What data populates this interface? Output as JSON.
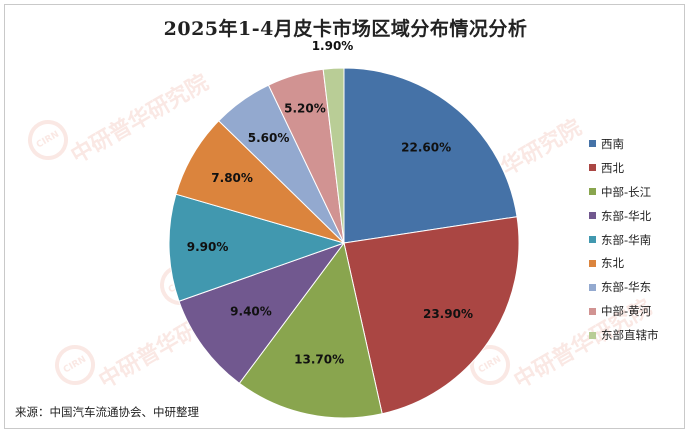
{
  "chart_data": {
    "type": "pie",
    "title": "2025年1-4月皮卡市场区域分布情况分析",
    "categories": [
      "西南",
      "西北",
      "中部-长江",
      "东部-华北",
      "东部-华南",
      "东北",
      "东部-华东",
      "中部-黄河",
      "东部直辖市"
    ],
    "values": [
      22.6,
      23.9,
      13.7,
      9.4,
      9.9,
      7.8,
      5.6,
      5.2,
      1.9
    ],
    "labels": [
      "22.60%",
      "23.90%",
      "13.70%",
      "9.40%",
      "9.90%",
      "7.80%",
      "5.60%",
      "5.20%",
      "1.90%"
    ],
    "colors": [
      "#4572a7",
      "#aa4643",
      "#89a54e",
      "#71588f",
      "#4198af",
      "#db843d",
      "#93a9cf",
      "#d19392",
      "#b9cd96"
    ],
    "legend_position": "right",
    "start": "12 o'clock, clockwise"
  },
  "source": "来源：中国汽车流通协会、中研整理",
  "watermark": {
    "badge": "CIRN",
    "text": "中研普华研究院",
    "url": "www.ChinaIRN.COM"
  }
}
